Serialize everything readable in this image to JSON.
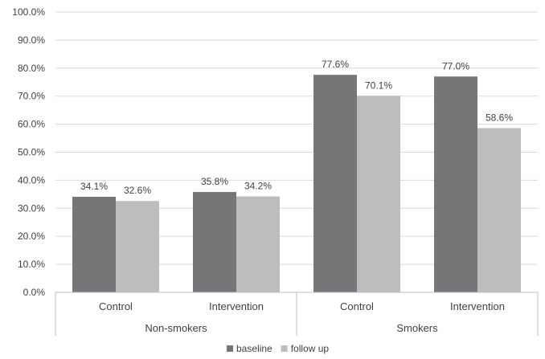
{
  "chart_data": {
    "type": "bar",
    "categories": [
      "Control",
      "Intervention",
      "Control",
      "Intervention"
    ],
    "groups": [
      {
        "label": "Non-smokers",
        "categories": [
          "Control",
          "Intervention"
        ]
      },
      {
        "label": "Smokers",
        "categories": [
          "Control",
          "Intervention"
        ]
      }
    ],
    "series": [
      {
        "name": "baseline",
        "color": "#767678",
        "values": [
          34.1,
          35.8,
          77.6,
          77.0
        ],
        "labels": [
          "34.1%",
          "35.8%",
          "77.6%",
          "77.0%"
        ]
      },
      {
        "name": "follow up",
        "color": "#bdbdbf",
        "values": [
          32.6,
          34.2,
          70.1,
          58.6
        ],
        "labels": [
          "32.6%",
          "34.2%",
          "70.1%",
          "58.6%"
        ]
      }
    ],
    "ylim": [
      0,
      100
    ],
    "yticks": [
      0,
      10,
      20,
      30,
      40,
      50,
      60,
      70,
      80,
      90,
      100
    ],
    "ytick_labels": [
      "0.0%",
      "10.0%",
      "20.0%",
      "30.0%",
      "40.0%",
      "50.0%",
      "60.0%",
      "70.0%",
      "80.0%",
      "90.0%",
      "100.0%"
    ],
    "grid": true,
    "legend_position": "bottom"
  }
}
